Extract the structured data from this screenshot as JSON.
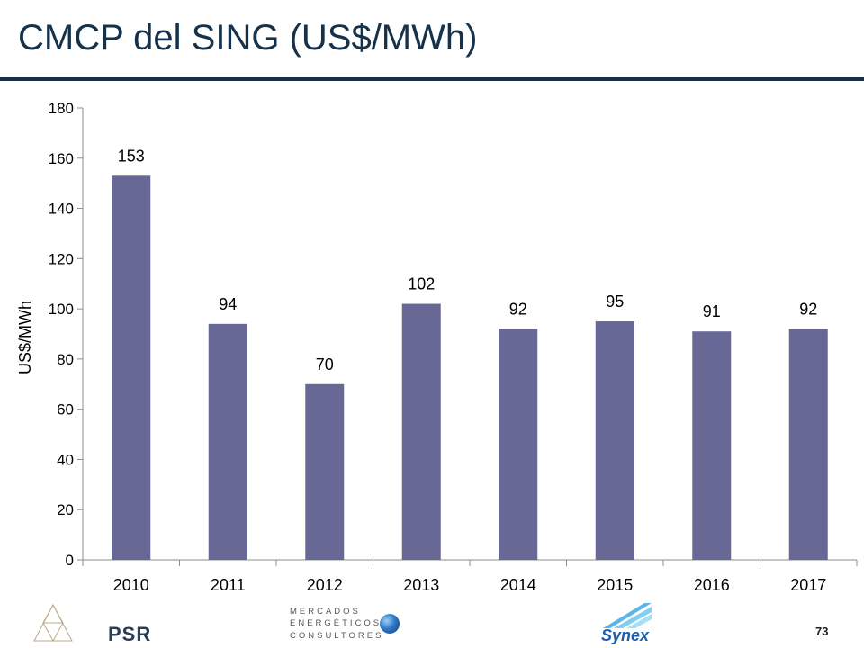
{
  "slide": {
    "title": "CMCP del SING (US$/MWh)",
    "page_number": "73"
  },
  "footer": {
    "psr_label": "PSR",
    "mec_lines": [
      "MERCADOS",
      "ENERGÉTICOS",
      "CONSULTORES"
    ],
    "synex_label": "Synex"
  },
  "colors": {
    "title": "#16324a",
    "bar": "#686896",
    "axis": "#8c8c8c"
  },
  "chart_data": {
    "type": "bar",
    "categories": [
      "2010",
      "2011",
      "2012",
      "2013",
      "2014",
      "2015",
      "2016",
      "2017"
    ],
    "values": [
      153,
      94,
      70,
      102,
      92,
      95,
      91,
      92
    ],
    "data_labels": [
      "153",
      "94",
      "70",
      "102",
      "92",
      "95",
      "91",
      "92"
    ],
    "title": "",
    "xlabel": "",
    "ylabel": "US$/MWh",
    "ylim": [
      0,
      180
    ],
    "yticks": [
      0,
      20,
      40,
      60,
      80,
      100,
      120,
      140,
      160,
      180
    ],
    "grid": false,
    "legend": "none"
  }
}
